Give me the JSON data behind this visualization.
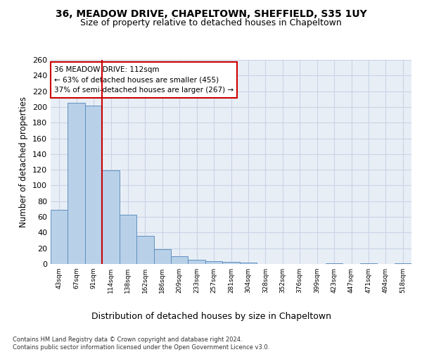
{
  "title1": "36, MEADOW DRIVE, CHAPELTOWN, SHEFFIELD, S35 1UY",
  "title2": "Size of property relative to detached houses in Chapeltown",
  "xlabel": "Distribution of detached houses by size in Chapeltown",
  "ylabel": "Number of detached properties",
  "bar_labels": [
    "43sqm",
    "67sqm",
    "91sqm",
    "114sqm",
    "138sqm",
    "162sqm",
    "186sqm",
    "209sqm",
    "233sqm",
    "257sqm",
    "281sqm",
    "304sqm",
    "328sqm",
    "352sqm",
    "376sqm",
    "399sqm",
    "423sqm",
    "447sqm",
    "471sqm",
    "494sqm",
    "518sqm"
  ],
  "bar_values": [
    69,
    205,
    202,
    119,
    63,
    36,
    19,
    10,
    5,
    4,
    3,
    2,
    0,
    0,
    0,
    0,
    1,
    0,
    1,
    0,
    1
  ],
  "bar_color": "#b8d0e8",
  "bar_edge_color": "#6090c0",
  "vline_x": 2.5,
  "vline_color": "#cc0000",
  "annotation_line1": "36 MEADOW DRIVE: 112sqm",
  "annotation_line2": "← 63% of detached houses are smaller (455)",
  "annotation_line3": "37% of semi-detached houses are larger (267) →",
  "annotation_box_color": "white",
  "annotation_box_edge_color": "#cc0000",
  "ylim": [
    0,
    260
  ],
  "yticks": [
    0,
    20,
    40,
    60,
    80,
    100,
    120,
    140,
    160,
    180,
    200,
    220,
    240,
    260
  ],
  "grid_color": "#c8d4e4",
  "background_color": "#e8eef6",
  "footer_text": "Contains HM Land Registry data © Crown copyright and database right 2024.\nContains public sector information licensed under the Open Government Licence v3.0.",
  "title1_fontsize": 10,
  "title2_fontsize": 9,
  "xlabel_fontsize": 9,
  "ylabel_fontsize": 8.5
}
